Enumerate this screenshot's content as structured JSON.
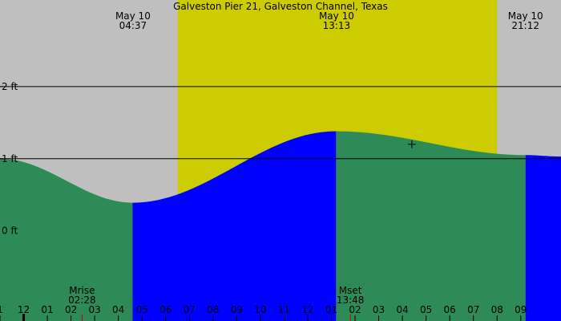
{
  "colors": {
    "background": "#bfbfbf",
    "daylight": "#cccc00",
    "rising_tide": "#0000ff",
    "falling_tide": "#2e8b57",
    "reference_line": "#000000",
    "moon_tick": "#cc0000"
  },
  "chart_data": {
    "type": "area",
    "title": "Galveston Pier 21, Galveston Channel, Texas",
    "xlabel": "",
    "ylabel": "",
    "xlim": [
      -1.0,
      22.7
    ],
    "ylim": [
      -1.25,
      3.2
    ],
    "y_unit": "ft",
    "grid": "horizontal lines at 1 ft and 2 ft",
    "y_ticks": [
      {
        "value": 2,
        "label": "2 ft",
        "line": true
      },
      {
        "value": 1,
        "label": "1 ft",
        "line": true
      },
      {
        "value": 0,
        "label": "0 ft",
        "line": false
      }
    ],
    "x_ticks": [
      "1",
      "12",
      "01",
      "02",
      "03",
      "04",
      "05",
      "06",
      "07",
      "08",
      "09",
      "10",
      "11",
      "12",
      "01",
      "02",
      "03",
      "04",
      "05",
      "06",
      "07",
      "08",
      "09"
    ],
    "sun_events": [
      {
        "date": "May 10",
        "time": "04:37",
        "hour": 4.617
      },
      {
        "date": "May 10",
        "time": "13:13",
        "hour": 13.217
      },
      {
        "date": "May 10",
        "time": "21:12",
        "hour": 21.2
      }
    ],
    "daylight": {
      "start": 6.5,
      "end": 20.0
    },
    "moon_events": [
      {
        "label": "Mrise",
        "time": "02:28",
        "hour": 2.467
      },
      {
        "label": "Mset",
        "time": "13:48",
        "hour": 13.8
      }
    ],
    "current_marker": {
      "hour": 16.4,
      "height_ft": 1.2
    },
    "tide_series": {
      "name": "",
      "points": [
        {
          "hour": -1.0,
          "ft": 1.0
        },
        {
          "hour": 4.6,
          "ft": 0.39
        },
        {
          "hour": 13.2,
          "ft": 1.38
        },
        {
          "hour": 21.2,
          "ft": 1.05
        },
        {
          "hour": 22.7,
          "ft": 1.03
        }
      ],
      "segments": [
        {
          "start": -1.0,
          "end": 4.6,
          "trend": "falling"
        },
        {
          "start": 4.6,
          "end": 13.2,
          "trend": "rising"
        },
        {
          "start": 13.2,
          "end": 21.2,
          "trend": "falling"
        },
        {
          "start": 21.2,
          "end": 22.7,
          "trend": "rising"
        }
      ]
    }
  }
}
